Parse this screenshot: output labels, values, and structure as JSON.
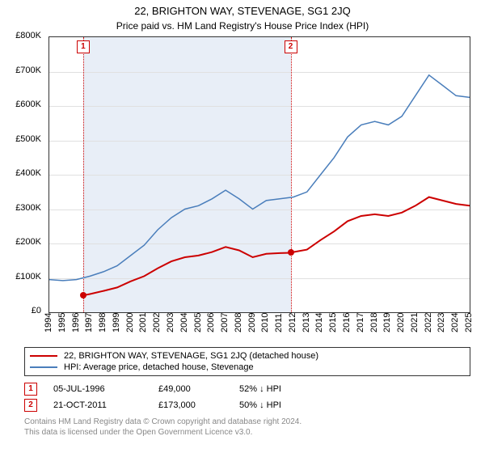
{
  "title": "22, BRIGHTON WAY, STEVENAGE, SG1 2JQ",
  "subtitle": "Price paid vs. HM Land Registry's House Price Index (HPI)",
  "chart": {
    "type": "line",
    "background_color": "#ffffff",
    "grid_color": "#e0e0e0",
    "border_color": "#333333",
    "shaded_region_color": "#e8eef7",
    "x_years": [
      1994,
      1995,
      1996,
      1997,
      1998,
      1999,
      2000,
      2001,
      2002,
      2003,
      2004,
      2005,
      2006,
      2007,
      2008,
      2009,
      2010,
      2011,
      2012,
      2013,
      2014,
      2015,
      2016,
      2017,
      2018,
      2019,
      2020,
      2021,
      2022,
      2023,
      2024,
      2025
    ],
    "ylim": [
      0,
      800000
    ],
    "ytick_step": 100000,
    "ytick_labels": [
      "£0",
      "£100K",
      "£200K",
      "£300K",
      "£400K",
      "£500K",
      "£600K",
      "£700K",
      "£800K"
    ],
    "label_fontsize": 11,
    "title_fontsize": 13,
    "series": [
      {
        "name": "price_paid",
        "label": "22, BRIGHTON WAY, STEVENAGE, SG1 2JQ (detached house)",
        "color": "#cc0000",
        "line_width": 2,
        "data": [
          [
            1996.5,
            49000
          ],
          [
            1997,
            53000
          ],
          [
            1998,
            62000
          ],
          [
            1999,
            72000
          ],
          [
            2000,
            90000
          ],
          [
            2001,
            105000
          ],
          [
            2002,
            128000
          ],
          [
            2003,
            148000
          ],
          [
            2004,
            160000
          ],
          [
            2005,
            165000
          ],
          [
            2006,
            175000
          ],
          [
            2007,
            190000
          ],
          [
            2008,
            180000
          ],
          [
            2009,
            160000
          ],
          [
            2010,
            170000
          ],
          [
            2011,
            172000
          ],
          [
            2011.8,
            173000
          ],
          [
            2012,
            175000
          ],
          [
            2013,
            182000
          ],
          [
            2014,
            210000
          ],
          [
            2015,
            235000
          ],
          [
            2016,
            265000
          ],
          [
            2017,
            280000
          ],
          [
            2018,
            285000
          ],
          [
            2019,
            280000
          ],
          [
            2020,
            290000
          ],
          [
            2021,
            310000
          ],
          [
            2022,
            335000
          ],
          [
            2023,
            325000
          ],
          [
            2024,
            315000
          ],
          [
            2025,
            310000
          ]
        ]
      },
      {
        "name": "hpi",
        "label": "HPI: Average price, detached house, Stevenage",
        "color": "#4a7ebb",
        "line_width": 1.5,
        "data": [
          [
            1994,
            95000
          ],
          [
            1995,
            92000
          ],
          [
            1996,
            95000
          ],
          [
            1997,
            105000
          ],
          [
            1998,
            118000
          ],
          [
            1999,
            135000
          ],
          [
            2000,
            165000
          ],
          [
            2001,
            195000
          ],
          [
            2002,
            240000
          ],
          [
            2003,
            275000
          ],
          [
            2004,
            300000
          ],
          [
            2005,
            310000
          ],
          [
            2006,
            330000
          ],
          [
            2007,
            355000
          ],
          [
            2008,
            330000
          ],
          [
            2009,
            300000
          ],
          [
            2010,
            325000
          ],
          [
            2011,
            330000
          ],
          [
            2012,
            335000
          ],
          [
            2013,
            350000
          ],
          [
            2014,
            400000
          ],
          [
            2015,
            450000
          ],
          [
            2016,
            510000
          ],
          [
            2017,
            545000
          ],
          [
            2018,
            555000
          ],
          [
            2019,
            545000
          ],
          [
            2020,
            570000
          ],
          [
            2021,
            630000
          ],
          [
            2022,
            690000
          ],
          [
            2023,
            660000
          ],
          [
            2024,
            630000
          ],
          [
            2025,
            625000
          ]
        ]
      }
    ],
    "markers": [
      {
        "num": "1",
        "year": 1996.5,
        "value": 49000,
        "color": "#cc0000"
      },
      {
        "num": "2",
        "year": 2011.8,
        "value": 173000,
        "color": "#cc0000"
      }
    ],
    "shaded_region": {
      "from_year": 1996.5,
      "to_year": 2011.8
    }
  },
  "transactions": [
    {
      "num": "1",
      "date": "05-JUL-1996",
      "price": "£49,000",
      "pct": "52% ↓ HPI",
      "color": "#cc0000"
    },
    {
      "num": "2",
      "date": "21-OCT-2011",
      "price": "£173,000",
      "pct": "50% ↓ HPI",
      "color": "#cc0000"
    }
  ],
  "attribution": {
    "line1": "Contains HM Land Registry data © Crown copyright and database right 2024.",
    "line2": "This data is licensed under the Open Government Licence v3.0."
  }
}
